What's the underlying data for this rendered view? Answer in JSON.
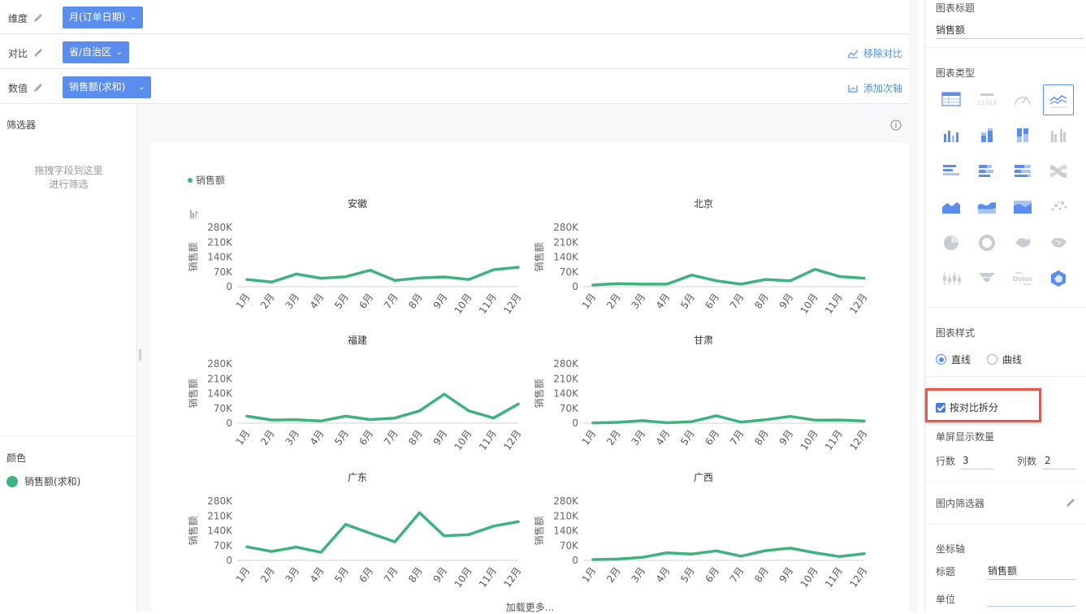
{
  "shelves": {
    "dimension": {
      "label": "维度",
      "pill": "月(订单日期)"
    },
    "compare": {
      "label": "对比",
      "pill": "省/自治区",
      "action": "移除对比"
    },
    "value": {
      "label": "数值",
      "pill": "销售额(求和)",
      "action": "添加次轴"
    }
  },
  "filter": {
    "title": "筛选器",
    "hint_line1": "拖拽字段到这里",
    "hint_line2": "进行筛选"
  },
  "color": {
    "title": "颜色",
    "item": "销售额(求和)",
    "swatch": "#3fb27f"
  },
  "chart": {
    "legend": "销售额",
    "load_more": "加载更多...",
    "ylabel": "销售额",
    "line_color": "#3fb27f"
  },
  "chart_data": {
    "type": "line",
    "title": "",
    "ylabel": "销售额",
    "ylim": [
      0,
      280000
    ],
    "yticks": [
      "0",
      "70K",
      "140K",
      "210K",
      "280K"
    ],
    "ytick_values": [
      0,
      70000,
      140000,
      210000,
      280000
    ],
    "x": [
      "1月",
      "2月",
      "3月",
      "4月",
      "5月",
      "6月",
      "7月",
      "8月",
      "9月",
      "10月",
      "11月",
      "12月"
    ],
    "legend": [
      "销售额"
    ],
    "panels": [
      {
        "name": "安徽",
        "values": [
          34000,
          22000,
          60000,
          40000,
          47000,
          78000,
          30000,
          41000,
          46000,
          34000,
          80000,
          92000
        ]
      },
      {
        "name": "北京",
        "values": [
          8000,
          14000,
          12000,
          12000,
          55000,
          28000,
          12000,
          34000,
          28000,
          82000,
          48000,
          40000
        ]
      },
      {
        "name": "福建",
        "values": [
          33000,
          15000,
          16000,
          10000,
          33000,
          17000,
          24000,
          58000,
          137000,
          58000,
          24000,
          90000
        ]
      },
      {
        "name": "甘肃",
        "values": [
          1000,
          4000,
          12000,
          2000,
          7000,
          35000,
          5000,
          16000,
          32000,
          14000,
          15000,
          10000
        ]
      },
      {
        "name": "广东",
        "values": [
          64000,
          42000,
          63000,
          38000,
          170000,
          128000,
          88000,
          225000,
          116000,
          122000,
          162000,
          183000
        ]
      },
      {
        "name": "广西",
        "values": [
          4000,
          6000,
          14000,
          36000,
          30000,
          45000,
          20000,
          46000,
          58000,
          36000,
          18000,
          32000
        ]
      }
    ]
  },
  "side": {
    "chart_title_label": "图表标题",
    "chart_title_value": "销售额",
    "chart_type_label": "图表类型",
    "chart_types": [
      "table-icon",
      "kpi-number-icon",
      "gauge-icon",
      "line-chart-icon",
      "bar-chart-icon",
      "stacked-bar-icon",
      "percent-bar-icon",
      "grouped-bar-icon",
      "horizontal-bar-icon",
      "horizontal-stacked-bar-icon",
      "horizontal-percent-bar-icon",
      "sankey-icon",
      "area-chart-icon",
      "stream-area-icon",
      "percent-area-icon",
      "scatter-icon",
      "pie-icon",
      "donut-icon",
      "map-icon",
      "region-map-icon",
      "boxplot-icon",
      "funnel-icon",
      "wordcloud-icon",
      "radar-icon"
    ],
    "wordcloud_text": "Dolor",
    "kpi_text": "12,016",
    "selected_type": "line-chart-icon",
    "style_label": "图表样式",
    "style_opt1": "直线",
    "style_opt2": "曲线",
    "split_label": "按对比拆分",
    "per_screen_label": "单屏显示数量",
    "rows_label": "行数",
    "rows_value": "3",
    "cols_label": "列数",
    "cols_value": "2",
    "inner_filter_label": "图内筛选器",
    "axis_label": "坐标轴",
    "axis_title_label": "标题",
    "axis_title_value": "销售额",
    "axis_unit_label": "单位",
    "axis_unit_value": "",
    "highlight_color": "#e8574a",
    "accent": "#5b8def"
  }
}
